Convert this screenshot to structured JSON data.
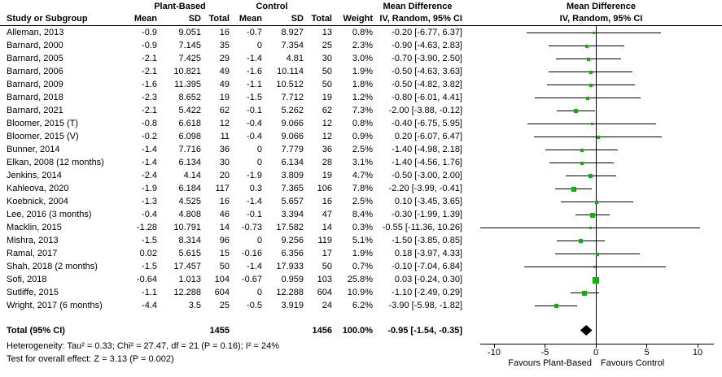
{
  "header": {
    "study_col": "Study or Subgroup",
    "group1": "Plant-Based",
    "group2": "Control",
    "mean": "Mean",
    "sd": "SD",
    "total": "Total",
    "weight": "Weight",
    "md_title": "Mean Difference",
    "md_subtitle": "IV, Random, 95% CI"
  },
  "chart_data": {
    "type": "forest",
    "title": "Mean Difference IV, Random, 95% CI",
    "x_axis": {
      "ticks": [
        -10,
        -5,
        0,
        5,
        10
      ],
      "min": -11.4,
      "max": 11.6
    },
    "favours_left": "Favours Plant-Based",
    "favours_right": "Favours Control",
    "studies": [
      {
        "name": "Alleman, 2013",
        "mean1": "-0.9",
        "sd1": "9.051",
        "n1": "16",
        "mean2": "-0.7",
        "sd2": "8.927",
        "n2": "13",
        "weight": "0.8%",
        "ci_text": "-0.20 [-6.77, 6.37]",
        "est": -0.2,
        "lo": -6.77,
        "hi": 6.37
      },
      {
        "name": "Barnard, 2000",
        "mean1": "-0.9",
        "sd1": "7.145",
        "n1": "35",
        "mean2": "0",
        "sd2": "7.354",
        "n2": "25",
        "weight": "2.3%",
        "ci_text": "-0.90 [-4.63, 2.83]",
        "est": -0.9,
        "lo": -4.63,
        "hi": 2.83
      },
      {
        "name": "Barnard, 2005",
        "mean1": "-2.1",
        "sd1": "7.425",
        "n1": "29",
        "mean2": "-1.4",
        "sd2": "4.81",
        "n2": "30",
        "weight": "3.0%",
        "ci_text": "-0.70 [-3.90, 2.50]",
        "est": -0.7,
        "lo": -3.9,
        "hi": 2.5
      },
      {
        "name": "Barnard, 2006",
        "mean1": "-2.1",
        "sd1": "10.821",
        "n1": "49",
        "mean2": "-1.6",
        "sd2": "10.114",
        "n2": "50",
        "weight": "1.9%",
        "ci_text": "-0.50 [-4.63, 3.63]",
        "est": -0.5,
        "lo": -4.63,
        "hi": 3.63
      },
      {
        "name": "Barnard, 2009",
        "mean1": "-1.6",
        "sd1": "11.395",
        "n1": "49",
        "mean2": "-1.1",
        "sd2": "10.512",
        "n2": "50",
        "weight": "1.8%",
        "ci_text": "-0.50 [-4.82, 3.82]",
        "est": -0.5,
        "lo": -4.82,
        "hi": 3.82
      },
      {
        "name": "Barnard, 2018",
        "mean1": "-2.3",
        "sd1": "8.652",
        "n1": "19",
        "mean2": "-1.5",
        "sd2": "7.712",
        "n2": "19",
        "weight": "1.2%",
        "ci_text": "-0.80 [-6.01, 4.41]",
        "est": -0.8,
        "lo": -6.01,
        "hi": 4.41
      },
      {
        "name": "Barnard, 2021",
        "mean1": "-2.1",
        "sd1": "5.422",
        "n1": "62",
        "mean2": "-0.1",
        "sd2": "5.262",
        "n2": "62",
        "weight": "7.3%",
        "ci_text": "-2.00 [-3.88, -0.12]",
        "est": -2.0,
        "lo": -3.88,
        "hi": -0.12
      },
      {
        "name": "Bloomer, 2015 (T)",
        "mean1": "-0.8",
        "sd1": "6.618",
        "n1": "12",
        "mean2": "-0.4",
        "sd2": "9.066",
        "n2": "12",
        "weight": "0.8%",
        "ci_text": "-0.40 [-6.75, 5.95]",
        "est": -0.4,
        "lo": -6.75,
        "hi": 5.95
      },
      {
        "name": "Bloomer, 2015 (V)",
        "mean1": "-0.2",
        "sd1": "6.098",
        "n1": "11",
        "mean2": "-0.4",
        "sd2": "9.066",
        "n2": "12",
        "weight": "0.9%",
        "ci_text": "0.20 [-6.07, 6.47]",
        "est": 0.2,
        "lo": -6.07,
        "hi": 6.47
      },
      {
        "name": "Bunner, 2014",
        "mean1": "-1.4",
        "sd1": "7.716",
        "n1": "36",
        "mean2": "0",
        "sd2": "7.779",
        "n2": "36",
        "weight": "2.5%",
        "ci_text": "-1.40 [-4.98, 2.18]",
        "est": -1.4,
        "lo": -4.98,
        "hi": 2.18
      },
      {
        "name": "Elkan, 2008 (12 months)",
        "mean1": "-1.4",
        "sd1": "6.134",
        "n1": "30",
        "mean2": "0",
        "sd2": "6.134",
        "n2": "28",
        "weight": "3.1%",
        "ci_text": "-1.40 [-4.56, 1.76]",
        "est": -1.4,
        "lo": -4.56,
        "hi": 1.76
      },
      {
        "name": "Jenkins, 2014",
        "mean1": "-2.4",
        "sd1": "4.14",
        "n1": "20",
        "mean2": "-1.9",
        "sd2": "3.809",
        "n2": "19",
        "weight": "4.7%",
        "ci_text": "-0.50 [-3.00, 2.00]",
        "est": -0.5,
        "lo": -3.0,
        "hi": 2.0
      },
      {
        "name": "Kahleova, 2020",
        "mean1": "-1.9",
        "sd1": "6.184",
        "n1": "117",
        "mean2": "0.3",
        "sd2": "7.365",
        "n2": "106",
        "weight": "7.8%",
        "ci_text": "-2.20 [-3.99, -0.41]",
        "est": -2.2,
        "lo": -3.99,
        "hi": -0.41
      },
      {
        "name": "Koebnick, 2004",
        "mean1": "-1.3",
        "sd1": "4.525",
        "n1": "16",
        "mean2": "-1.4",
        "sd2": "5.657",
        "n2": "16",
        "weight": "2.5%",
        "ci_text": "0.10 [-3.45, 3.65]",
        "est": 0.1,
        "lo": -3.45,
        "hi": 3.65
      },
      {
        "name": "Lee, 2016 (3 months)",
        "mean1": "-0.4",
        "sd1": "4.808",
        "n1": "46",
        "mean2": "-0.1",
        "sd2": "3.394",
        "n2": "47",
        "weight": "8.4%",
        "ci_text": "-0.30 [-1.99, 1.39]",
        "est": -0.3,
        "lo": -1.99,
        "hi": 1.39
      },
      {
        "name": "Macklin, 2015",
        "mean1": "-1.28",
        "sd1": "10.791",
        "n1": "14",
        "mean2": "-0.73",
        "sd2": "17.582",
        "n2": "14",
        "weight": "0.3%",
        "ci_text": "-0.55 [-11.36, 10.26]",
        "est": -0.55,
        "lo": -11.36,
        "hi": 10.26
      },
      {
        "name": "Mishra, 2013",
        "mean1": "-1.5",
        "sd1": "8.314",
        "n1": "96",
        "mean2": "0",
        "sd2": "9.256",
        "n2": "119",
        "weight": "5.1%",
        "ci_text": "-1.50 [-3.85, 0.85]",
        "est": -1.5,
        "lo": -3.85,
        "hi": 0.85
      },
      {
        "name": "Ramal, 2017",
        "mean1": "0.02",
        "sd1": "5.615",
        "n1": "15",
        "mean2": "-0.16",
        "sd2": "6.356",
        "n2": "17",
        "weight": "1.9%",
        "ci_text": "0.18 [-3.97, 4.33]",
        "est": 0.18,
        "lo": -3.97,
        "hi": 4.33
      },
      {
        "name": "Shah, 2018 (2 months)",
        "mean1": "-1.5",
        "sd1": "17.457",
        "n1": "50",
        "mean2": "-1.4",
        "sd2": "17.933",
        "n2": "50",
        "weight": "0.7%",
        "ci_text": "-0.10 [-7.04, 6.84]",
        "est": -0.1,
        "lo": -7.04,
        "hi": 6.84
      },
      {
        "name": "Sofi, 2018",
        "mean1": "-0.64",
        "sd1": "1.013",
        "n1": "104",
        "mean2": "-0.67",
        "sd2": "0.959",
        "n2": "103",
        "weight": "25.8%",
        "ci_text": "0.03 [-0.24, 0.30]",
        "est": 0.03,
        "lo": -0.24,
        "hi": 0.3
      },
      {
        "name": "Sutliffe, 2015",
        "mean1": "-1.1",
        "sd1": "12.288",
        "n1": "604",
        "mean2": "0",
        "sd2": "12.288",
        "n2": "604",
        "weight": "10.9%",
        "ci_text": "-1.10 [-2.49, 0.29]",
        "est": -1.1,
        "lo": -2.49,
        "hi": 0.29
      },
      {
        "name": "Wright, 2017 (6 months)",
        "mean1": "-4.4",
        "sd1": "3.5",
        "n1": "25",
        "mean2": "-0.5",
        "sd2": "3.919",
        "n2": "24",
        "weight": "6.2%",
        "ci_text": "-3.90 [-5.98, -1.82]",
        "est": -3.9,
        "lo": -5.98,
        "hi": -1.82
      }
    ],
    "total": {
      "label": "Total (95% CI)",
      "n1": "1455",
      "n2": "1456",
      "weight": "100.0%",
      "ci_text": "-0.95 [-1.54, -0.35]",
      "est": -0.95,
      "lo": -1.54,
      "hi": -0.35
    }
  },
  "footer": {
    "heterogeneity": "Heterogeneity: Tau² = 0.33; Chi² = 27.47, df = 21 (P = 0.16); I² = 24%",
    "overall_effect": "Test for overall effect: Z = 3.13 (P = 0.002)"
  },
  "colors": {
    "marker_green": "#00bb00",
    "line_black": "#000000",
    "diamond_black": "#000000"
  }
}
